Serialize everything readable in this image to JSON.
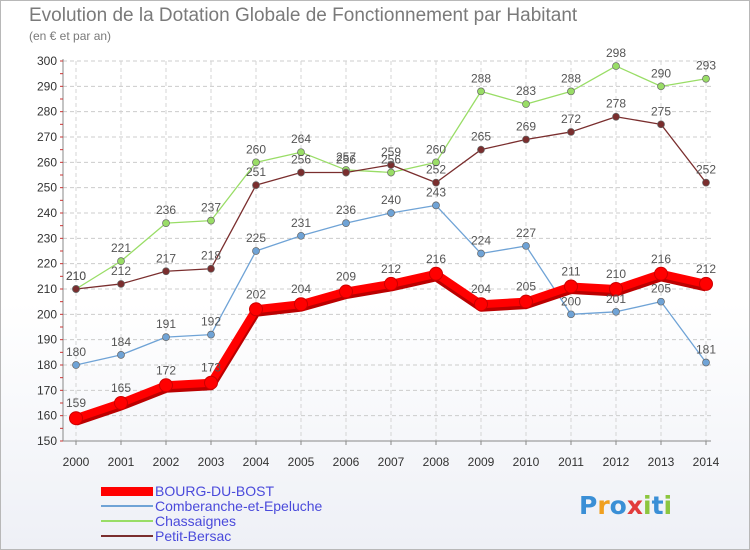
{
  "chart_data": {
    "type": "line",
    "title": "Evolution de la Dotation Globale de Fonctionnement par Habitant",
    "subtitle": "(en € et par an)",
    "xlabel": "",
    "ylabel": "",
    "ylim": [
      150,
      300
    ],
    "yticks": [
      150,
      160,
      170,
      180,
      190,
      200,
      210,
      220,
      230,
      240,
      250,
      260,
      270,
      280,
      290,
      300
    ],
    "grid": true,
    "legend_position": "bottom-left",
    "categories": [
      "2000",
      "2001",
      "2002",
      "2003",
      "2004",
      "2005",
      "2006",
      "2007",
      "2008",
      "2009",
      "2010",
      "2011",
      "2012",
      "2013",
      "2014"
    ],
    "series": [
      {
        "name": "BOURG-DU-BOST",
        "color": "#ff0000",
        "values": [
          159,
          165,
          172,
          173,
          202,
          204,
          209,
          212,
          216,
          204,
          205,
          211,
          210,
          216,
          212
        ]
      },
      {
        "name": "Comberanche-et-Epeluche",
        "color": "#6fa3d6",
        "values": [
          180,
          184,
          191,
          192,
          225,
          231,
          236,
          240,
          243,
          224,
          227,
          200,
          201,
          205,
          181
        ]
      },
      {
        "name": "Chassaignes",
        "color": "#99dd66",
        "values": [
          210,
          221,
          236,
          237,
          260,
          264,
          257,
          256,
          260,
          288,
          283,
          288,
          298,
          290,
          293
        ]
      },
      {
        "name": "Petit-Bersac",
        "color": "#7a2e2e",
        "values": [
          210,
          212,
          217,
          218,
          251,
          256,
          256,
          259,
          252,
          265,
          269,
          272,
          278,
          275,
          252
        ]
      }
    ]
  },
  "logo": {
    "letters": [
      "P",
      "r",
      "o",
      "x",
      "i",
      "t",
      "i"
    ],
    "colors": [
      "#3a8fd6",
      "#f0a020",
      "#3a8fd6",
      "#e23c3c",
      "#8cc63f",
      "#3a8fd6",
      "#8cc63f"
    ]
  }
}
